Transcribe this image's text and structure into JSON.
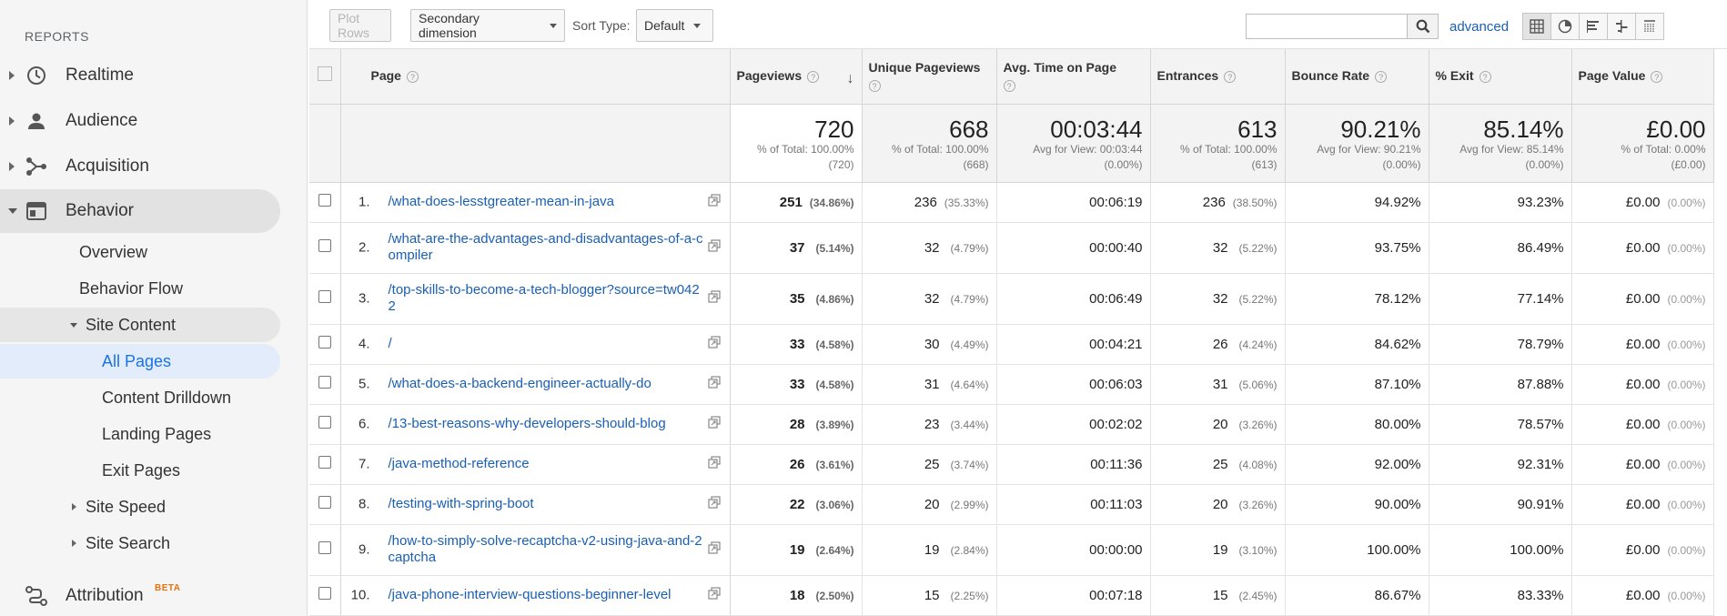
{
  "sidebar": {
    "heading": "REPORTS",
    "nav": [
      {
        "label": "Realtime",
        "icon": "clock-icon"
      },
      {
        "label": "Audience",
        "icon": "person-icon"
      },
      {
        "label": "Acquisition",
        "icon": "acquisition-icon"
      },
      {
        "label": "Behavior",
        "icon": "behavior-icon"
      }
    ],
    "behavior_items": [
      "Overview",
      "Behavior Flow"
    ],
    "site_content": "Site Content",
    "site_content_items": [
      "All Pages",
      "Content Drilldown",
      "Landing Pages",
      "Exit Pages"
    ],
    "site_speed": "Site Speed",
    "site_search": "Site Search",
    "attribution": "Attribution",
    "beta": "BETA"
  },
  "toolbar": {
    "plot_rows": "Plot Rows",
    "secondary_dimension": "Secondary dimension",
    "sort_type_label": "Sort Type:",
    "sort_type_value": "Default",
    "search_value": "",
    "advanced": "advanced"
  },
  "columns": {
    "page": "Page",
    "pageviews": "Pageviews",
    "unique_pageviews": "Unique Pageviews",
    "avg_time": "Avg. Time on Page",
    "entrances": "Entrances",
    "bounce_rate": "Bounce Rate",
    "exit": "% Exit",
    "page_value": "Page Value"
  },
  "totals": {
    "pageviews": {
      "value": "720",
      "sub1": "% of Total: 100.00%",
      "sub2": "(720)"
    },
    "unique_pageviews": {
      "value": "668",
      "sub1": "% of Total: 100.00%",
      "sub2": "(668)"
    },
    "avg_time": {
      "value": "00:03:44",
      "sub1": "Avg for View: 00:03:44",
      "sub2": "(0.00%)"
    },
    "entrances": {
      "value": "613",
      "sub1": "% of Total: 100.00%",
      "sub2": "(613)"
    },
    "bounce_rate": {
      "value": "90.21%",
      "sub1": "Avg for View: 90.21%",
      "sub2": "(0.00%)"
    },
    "exit": {
      "value": "85.14%",
      "sub1": "Avg for View: 85.14%",
      "sub2": "(0.00%)"
    },
    "page_value": {
      "value": "£0.00",
      "sub1": "% of Total: 0.00%",
      "sub2": "(£0.00)"
    }
  },
  "rows": [
    {
      "num": "1.",
      "page": "/what-does-lesstgreater-mean-in-java",
      "pv": "251",
      "pv_pct": "(34.86%)",
      "upv": "236",
      "upv_pct": "(35.33%)",
      "time": "00:06:19",
      "ent": "236",
      "ent_pct": "(38.50%)",
      "bounce": "94.92%",
      "exit": "93.23%",
      "value": "£0.00",
      "value_pct": "(0.00%)"
    },
    {
      "num": "2.",
      "page": "/what-are-the-advantages-and-disadvantages-of-a-compiler",
      "pv": "37",
      "pv_pct": "(5.14%)",
      "upv": "32",
      "upv_pct": "(4.79%)",
      "time": "00:00:40",
      "ent": "32",
      "ent_pct": "(5.22%)",
      "bounce": "93.75%",
      "exit": "86.49%",
      "value": "£0.00",
      "value_pct": "(0.00%)"
    },
    {
      "num": "3.",
      "page": "/top-skills-to-become-a-tech-blogger?source=tw0422",
      "pv": "35",
      "pv_pct": "(4.86%)",
      "upv": "32",
      "upv_pct": "(4.79%)",
      "time": "00:06:49",
      "ent": "32",
      "ent_pct": "(5.22%)",
      "bounce": "78.12%",
      "exit": "77.14%",
      "value": "£0.00",
      "value_pct": "(0.00%)"
    },
    {
      "num": "4.",
      "page": "/",
      "pv": "33",
      "pv_pct": "(4.58%)",
      "upv": "30",
      "upv_pct": "(4.49%)",
      "time": "00:04:21",
      "ent": "26",
      "ent_pct": "(4.24%)",
      "bounce": "84.62%",
      "exit": "78.79%",
      "value": "£0.00",
      "value_pct": "(0.00%)"
    },
    {
      "num": "5.",
      "page": "/what-does-a-backend-engineer-actually-do",
      "pv": "33",
      "pv_pct": "(4.58%)",
      "upv": "31",
      "upv_pct": "(4.64%)",
      "time": "00:06:03",
      "ent": "31",
      "ent_pct": "(5.06%)",
      "bounce": "87.10%",
      "exit": "87.88%",
      "value": "£0.00",
      "value_pct": "(0.00%)"
    },
    {
      "num": "6.",
      "page": "/13-best-reasons-why-developers-should-blog",
      "pv": "28",
      "pv_pct": "(3.89%)",
      "upv": "23",
      "upv_pct": "(3.44%)",
      "time": "00:02:02",
      "ent": "20",
      "ent_pct": "(3.26%)",
      "bounce": "80.00%",
      "exit": "78.57%",
      "value": "£0.00",
      "value_pct": "(0.00%)"
    },
    {
      "num": "7.",
      "page": "/java-method-reference",
      "pv": "26",
      "pv_pct": "(3.61%)",
      "upv": "25",
      "upv_pct": "(3.74%)",
      "time": "00:11:36",
      "ent": "25",
      "ent_pct": "(4.08%)",
      "bounce": "92.00%",
      "exit": "92.31%",
      "value": "£0.00",
      "value_pct": "(0.00%)"
    },
    {
      "num": "8.",
      "page": "/testing-with-spring-boot",
      "pv": "22",
      "pv_pct": "(3.06%)",
      "upv": "20",
      "upv_pct": "(2.99%)",
      "time": "00:11:03",
      "ent": "20",
      "ent_pct": "(3.26%)",
      "bounce": "90.00%",
      "exit": "90.91%",
      "value": "£0.00",
      "value_pct": "(0.00%)"
    },
    {
      "num": "9.",
      "page": "/how-to-simply-solve-recaptcha-v2-using-java-and-2captcha",
      "pv": "19",
      "pv_pct": "(2.64%)",
      "upv": "19",
      "upv_pct": "(2.84%)",
      "time": "00:00:00",
      "ent": "19",
      "ent_pct": "(3.10%)",
      "bounce": "100.00%",
      "exit": "100.00%",
      "value": "£0.00",
      "value_pct": "(0.00%)"
    },
    {
      "num": "10.",
      "page": "/java-phone-interview-questions-beginner-level",
      "pv": "18",
      "pv_pct": "(2.50%)",
      "upv": "15",
      "upv_pct": "(2.25%)",
      "time": "00:07:18",
      "ent": "15",
      "ent_pct": "(2.45%)",
      "bounce": "86.67%",
      "exit": "83.33%",
      "value": "£0.00",
      "value_pct": "(0.00%)"
    }
  ]
}
